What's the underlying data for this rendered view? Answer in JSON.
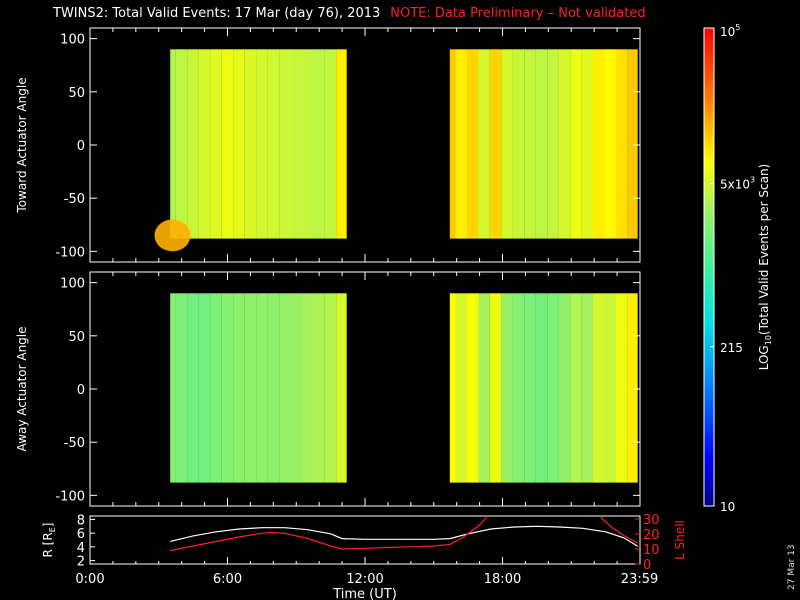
{
  "header": {
    "title": "TWINS2: Total Valid Events: 17 Mar (day  76), 2013",
    "note": "NOTE: Data Preliminary – Not validated"
  },
  "date_stamp": "27 Mar 13",
  "colors": {
    "background": "#000000",
    "axis": "#ffffff",
    "note": "#ff2020",
    "lshell": "#ff2020",
    "radius": "#ffffff"
  },
  "colorbar": {
    "label": "LOG10(Total Valid Events per Scan)",
    "label_main": "LOG",
    "label_sub": "10",
    "label_rest": "(Total Valid Events per Scan)",
    "ticks": [
      {
        "text": "10",
        "value": 10
      },
      {
        "text": "215",
        "value": 215
      },
      {
        "text": "5x10",
        "sup": "3",
        "value": 5000
      },
      {
        "text": "10",
        "sup": "5",
        "value": 100000
      }
    ],
    "range": [
      10,
      100000
    ],
    "scale": "log"
  },
  "chart_data": [
    {
      "type": "heatmap",
      "title": "",
      "xlabel": "",
      "ylabel": "Toward Actuator Angle",
      "xlim": [
        0,
        24
      ],
      "ylim": [
        -110,
        110
      ],
      "yticks": [
        "100",
        "50",
        "0",
        "-50",
        "-100"
      ],
      "data_segments": [
        [
          3.5,
          11.2
        ],
        [
          15.7,
          23.9
        ]
      ],
      "angle_range": [
        -88,
        90
      ],
      "profile_hours": [
        3.5,
        4.0,
        4.5,
        5.0,
        5.5,
        6.0,
        6.5,
        7.0,
        7.5,
        8.0,
        8.5,
        9.0,
        9.5,
        10.0,
        10.5,
        11.0,
        15.7,
        16.2,
        16.7,
        17.2,
        17.7,
        18.2,
        18.7,
        19.2,
        19.7,
        20.2,
        20.7,
        21.2,
        21.7,
        22.2,
        22.7,
        23.2,
        23.7
      ],
      "profile_log10_counts": [
        3.55,
        3.6,
        3.65,
        3.7,
        3.75,
        3.8,
        3.78,
        3.72,
        3.7,
        3.68,
        3.66,
        3.64,
        3.62,
        3.6,
        3.62,
        3.95,
        4.1,
        3.95,
        4.05,
        3.7,
        4.05,
        3.7,
        3.65,
        3.62,
        3.6,
        3.62,
        3.7,
        3.8,
        3.75,
        3.95,
        3.9,
        4.0,
        4.1
      ],
      "hot_spot": {
        "hour": 3.6,
        "angle": -85,
        "log10_counts": 4.2
      }
    },
    {
      "type": "heatmap",
      "title": "",
      "xlabel": "",
      "ylabel": "Away Actuator Angle",
      "xlim": [
        0,
        24
      ],
      "ylim": [
        -110,
        110
      ],
      "yticks": [
        "100",
        "50",
        "0",
        "-50",
        "-100"
      ],
      "data_segments": [
        [
          3.5,
          11.2
        ],
        [
          15.7,
          23.9
        ]
      ],
      "angle_range": [
        -88,
        90
      ],
      "profile_hours": [
        3.5,
        4.0,
        4.5,
        5.0,
        5.5,
        6.0,
        6.5,
        7.0,
        7.5,
        8.0,
        8.5,
        9.0,
        9.5,
        10.0,
        10.5,
        11.0,
        15.7,
        16.2,
        16.7,
        17.2,
        17.7,
        18.2,
        18.7,
        19.2,
        19.7,
        20.2,
        20.7,
        21.2,
        21.7,
        22.2,
        22.7,
        23.2,
        23.7
      ],
      "profile_log10_counts": [
        3.35,
        3.3,
        3.25,
        3.25,
        3.3,
        3.35,
        3.38,
        3.4,
        3.4,
        3.38,
        3.42,
        3.45,
        3.5,
        3.52,
        3.55,
        3.7,
        3.9,
        3.7,
        3.85,
        3.5,
        3.8,
        3.45,
        3.35,
        3.3,
        3.25,
        3.3,
        3.4,
        3.55,
        3.5,
        3.7,
        3.65,
        3.8,
        3.95
      ]
    },
    {
      "type": "line",
      "title": "",
      "xlabel": "Time (UT)",
      "ylabel_left": "R [RE]",
      "ylabel_left_main": "R [R",
      "ylabel_left_sub": "E",
      "ylabel_left_end": "]",
      "ylabel_right": "L Shell",
      "xlim": [
        0,
        24
      ],
      "ylim_left": [
        1.5,
        8.5
      ],
      "ylim_right": [
        0,
        32
      ],
      "yticks_left": [
        "8",
        "6",
        "4",
        "2"
      ],
      "yticks_right": [
        "30",
        "20",
        "10",
        "0"
      ],
      "xticks": [
        {
          "label": "0:00",
          "hour": 0
        },
        {
          "label": "6:00",
          "hour": 6
        },
        {
          "label": "12:00",
          "hour": 12
        },
        {
          "label": "18:00",
          "hour": 18
        },
        {
          "label": "23:59",
          "hour": 23.98
        }
      ],
      "series": [
        {
          "color": "#ffffff",
          "axis": "left",
          "x": [
            3.5,
            4.5,
            5.5,
            6.5,
            7.5,
            8.5,
            9.5,
            10.5,
            11.0,
            12.0,
            13.0,
            14.0,
            15.0,
            15.7,
            16.5,
            17.5,
            18.5,
            19.5,
            20.5,
            21.5,
            22.5,
            23.3,
            23.9
          ],
          "y": [
            4.8,
            5.6,
            6.2,
            6.6,
            6.8,
            6.8,
            6.5,
            5.9,
            5.2,
            5.1,
            5.1,
            5.1,
            5.1,
            5.2,
            5.9,
            6.6,
            6.9,
            7.0,
            6.9,
            6.7,
            6.2,
            5.3,
            4.1
          ]
        },
        {
          "color": "#ff2020",
          "axis": "right",
          "x": [
            3.5,
            4.5,
            5.5,
            6.5,
            7.5,
            8.0,
            8.5,
            9.5,
            10.5,
            11.0,
            12.0,
            13.0,
            14.0,
            15.0,
            15.7,
            16.3,
            17.0,
            17.3
          ],
          "y": [
            9,
            12,
            15,
            18,
            20.5,
            21,
            20.5,
            17,
            12,
            10,
            10.5,
            11,
            11.5,
            12,
            13,
            18,
            26,
            31
          ]
        },
        {
          "color": "#ff2020",
          "axis": "right",
          "x": [
            22.3,
            22.8,
            23.3,
            23.9
          ],
          "y": [
            31,
            24,
            19,
            14
          ]
        }
      ]
    }
  ]
}
